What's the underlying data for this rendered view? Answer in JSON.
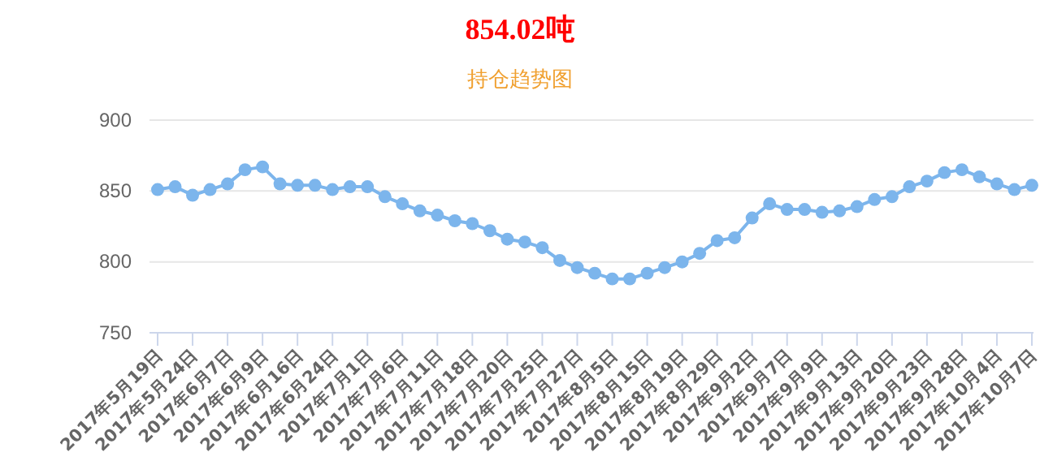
{
  "chart_data": {
    "type": "line",
    "title": "854.02吨",
    "subtitle": "持仓趋势图",
    "categories": [
      "2017年5月19日",
      null,
      "2017年5月24日",
      null,
      "2017年6月7日",
      null,
      "2017年6月9日",
      null,
      "2017年6月16日",
      null,
      "2017年6月24日",
      null,
      "2017年7月1日",
      null,
      "2017年7月6日",
      null,
      "2017年7月11日",
      null,
      "2017年7月18日",
      null,
      "2017年7月20日",
      null,
      "2017年7月25日",
      null,
      "2017年7月27日",
      null,
      "2017年8月5日",
      null,
      "2017年8月15日",
      null,
      "2017年8月19日",
      null,
      "2017年8月29日",
      null,
      "2017年9月2日",
      null,
      "2017年9月7日",
      null,
      "2017年9月9日",
      null,
      "2017年9月13日",
      null,
      "2017年9月20日",
      null,
      "2017年9月23日",
      null,
      "2017年9月28日",
      null,
      "2017年10月4日",
      null,
      "2017年10月7日"
    ],
    "series": [
      {
        "color": "#7cb5ec",
        "values": [
          851,
          853,
          847,
          851,
          855,
          865,
          867,
          855,
          854,
          854,
          851,
          853,
          853,
          846,
          841,
          836,
          833,
          829,
          827,
          822,
          816,
          814,
          810,
          801,
          796,
          792,
          788,
          788,
          792,
          796,
          800,
          806,
          815,
          817,
          831,
          841,
          837,
          837,
          835,
          836,
          839,
          844,
          846,
          853,
          857,
          863,
          865,
          860,
          855,
          851,
          854
        ]
      }
    ],
    "ylim": [
      750,
      900
    ],
    "yticks": [
      750,
      800,
      850,
      900
    ],
    "grid": "y",
    "marker": "circle",
    "line_style": "solid"
  }
}
